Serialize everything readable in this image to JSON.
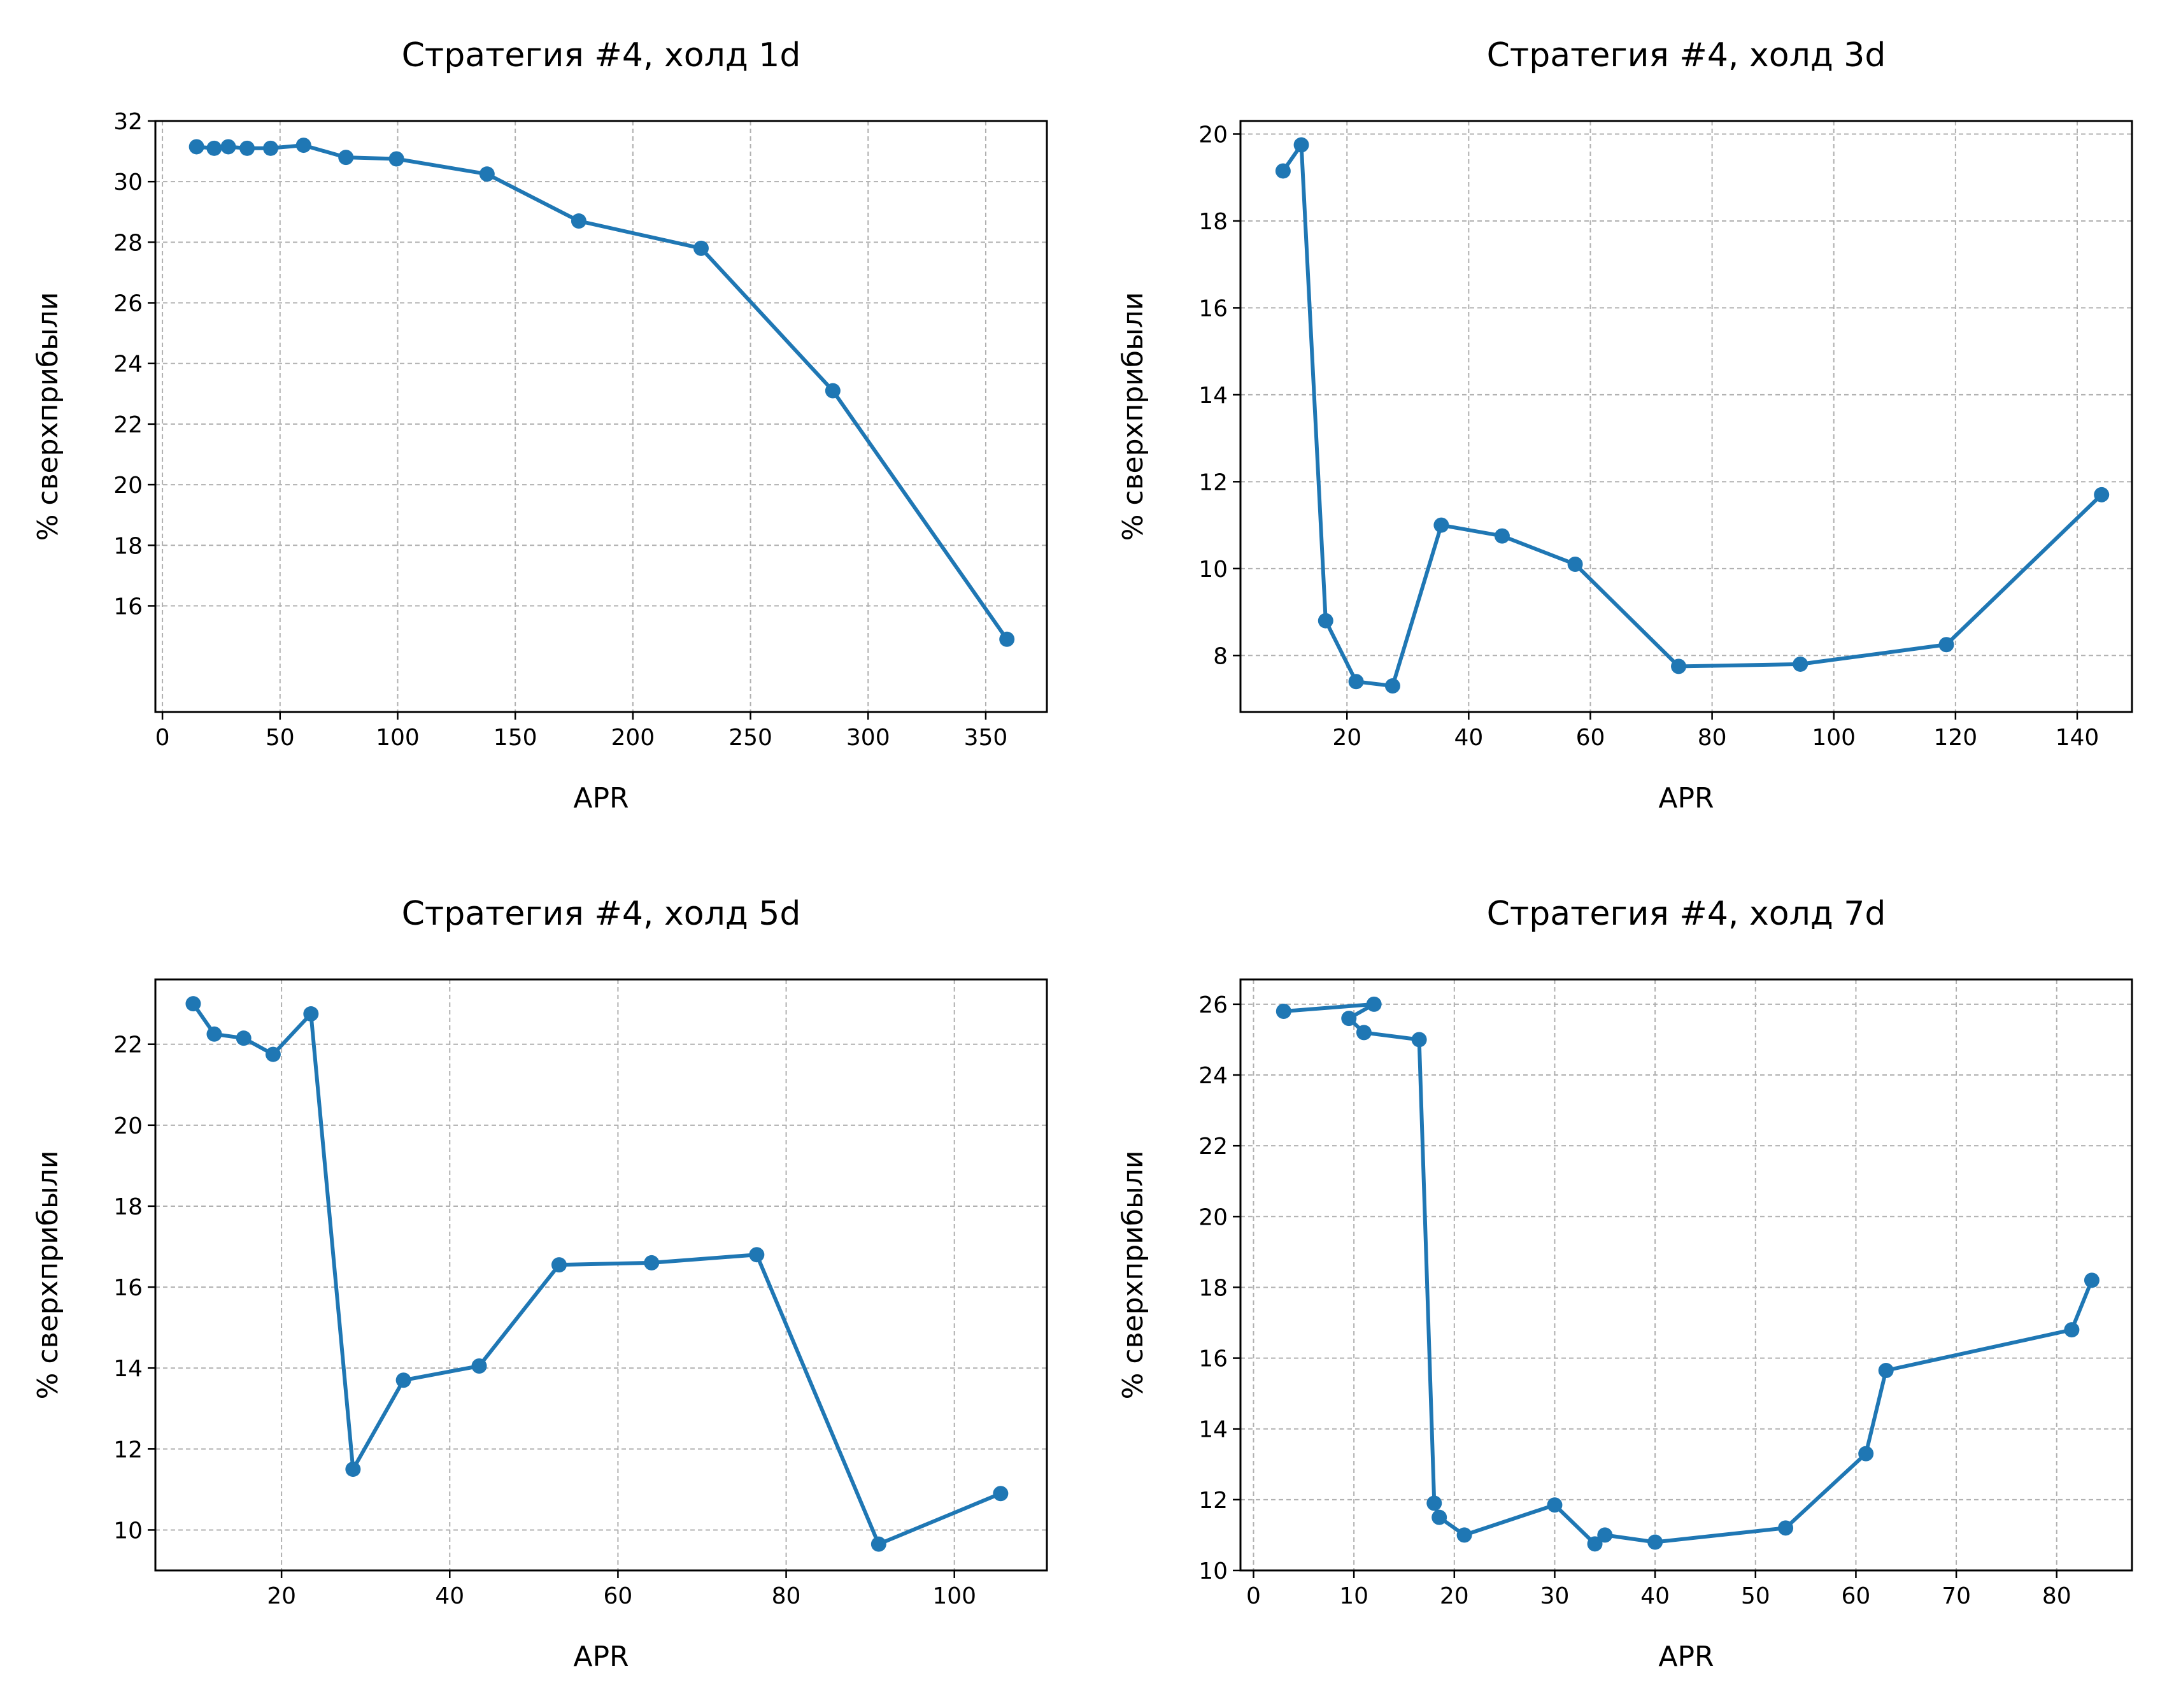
{
  "colors": {
    "series": "#1f77b4",
    "grid": "#b0b0b0"
  },
  "chart_data": [
    {
      "type": "line",
      "title": "Стратегия #4, холд 1d",
      "xlabel": "APR",
      "ylabel": "% сверхприбыли",
      "grid": true,
      "xlim": [
        -3,
        376
      ],
      "ylim": [
        12.5,
        32
      ],
      "xticks": [
        0,
        50,
        100,
        150,
        200,
        250,
        300,
        350
      ],
      "yticks": [
        16,
        18,
        20,
        22,
        24,
        26,
        28,
        30,
        32
      ],
      "series": [
        {
          "x": [
            14.5,
            22,
            28,
            36,
            46,
            60,
            78,
            99.5,
            138,
            177,
            229,
            285,
            359
          ],
          "y": [
            31.15,
            31.1,
            31.15,
            31.1,
            31.1,
            31.2,
            30.8,
            30.75,
            30.25,
            28.7,
            27.8,
            23.1,
            14.9
          ]
        }
      ]
    },
    {
      "type": "line",
      "title": "Стратегия #4, холд 3d",
      "xlabel": "APR",
      "ylabel": "% сверхприбыли",
      "grid": true,
      "xlim": [
        2.5,
        149
      ],
      "ylim": [
        6.7,
        20.3
      ],
      "xticks": [
        20,
        40,
        60,
        80,
        100,
        120,
        140
      ],
      "yticks": [
        8,
        10,
        12,
        14,
        16,
        18,
        20
      ],
      "series": [
        {
          "x": [
            9.5,
            12.5,
            16.5,
            21.5,
            27.5,
            35.5,
            45.5,
            57.5,
            74.5,
            94.5,
            118.5,
            144
          ],
          "y": [
            19.15,
            19.75,
            8.8,
            7.4,
            7.3,
            11.0,
            10.75,
            10.1,
            7.75,
            7.8,
            8.25,
            11.7
          ]
        }
      ]
    },
    {
      "type": "line",
      "title": "Стратегия #4, холд 5d",
      "xlabel": "APR",
      "ylabel": "% сверхприбыли",
      "grid": true,
      "xlim": [
        5,
        111
      ],
      "ylim": [
        9,
        23.6
      ],
      "xticks": [
        20,
        40,
        60,
        80,
        100
      ],
      "yticks": [
        10,
        12,
        14,
        16,
        18,
        20,
        22
      ],
      "series": [
        {
          "x": [
            9.5,
            12,
            15.5,
            19,
            23.5,
            28.5,
            34.5,
            43.5,
            53,
            64,
            76.5,
            91,
            105.5
          ],
          "y": [
            23.0,
            22.25,
            22.15,
            21.75,
            22.75,
            11.5,
            13.7,
            14.05,
            16.55,
            16.6,
            16.8,
            9.65,
            10.9
          ]
        }
      ]
    },
    {
      "type": "line",
      "title": "Стратегия #4, холд 7d",
      "xlabel": "APR",
      "ylabel": "% сверхприбыли",
      "grid": true,
      "xlim": [
        -1.3,
        87.5
      ],
      "ylim": [
        10,
        26.7
      ],
      "xticks": [
        0,
        10,
        20,
        30,
        40,
        50,
        60,
        70,
        80
      ],
      "yticks": [
        10,
        12,
        14,
        16,
        18,
        20,
        22,
        24,
        26
      ],
      "series": [
        {
          "x": [
            3,
            12,
            9.5,
            11,
            16.5,
            18,
            18.5,
            21,
            30,
            34,
            35,
            40,
            53,
            61,
            63,
            81.5,
            83.5
          ],
          "y": [
            25.8,
            26.0,
            25.6,
            25.2,
            25.0,
            11.9,
            11.5,
            11.0,
            11.85,
            10.75,
            11.0,
            10.8,
            11.2,
            13.3,
            15.65,
            16.8,
            18.2
          ]
        }
      ]
    }
  ]
}
